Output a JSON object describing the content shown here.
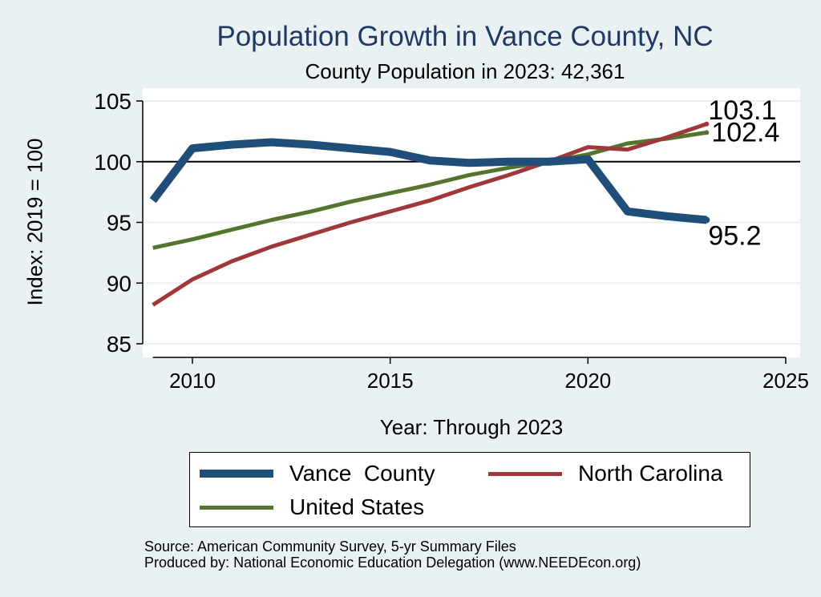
{
  "chart_data": {
    "type": "line",
    "title": "Population Growth in Vance County, NC",
    "subtitle": "County Population in 2023: 42,361",
    "xlabel": "Year: Through 2023",
    "ylabel": "Index: 2019 = 100",
    "xlim": [
      2009,
      2025
    ],
    "ylim": [
      84,
      106
    ],
    "xticks": [
      2010,
      2015,
      2020,
      2025
    ],
    "yticks": [
      85,
      90,
      95,
      100,
      105
    ],
    "reference_line": 100,
    "series": [
      {
        "name": "Vance  County",
        "color": "#1f4e79",
        "x": [
          2009,
          2010,
          2011,
          2012,
          2013,
          2014,
          2015,
          2016,
          2017,
          2018,
          2019,
          2020,
          2021,
          2022,
          2023
        ],
        "values": [
          96.8,
          101.1,
          101.4,
          101.6,
          101.4,
          101.1,
          100.8,
          100.1,
          99.9,
          100.0,
          100.0,
          100.2,
          95.9,
          95.5,
          95.2
        ],
        "end_label": "95.2"
      },
      {
        "name": "North Carolina",
        "color": "#a0383b",
        "x": [
          2009,
          2010,
          2011,
          2012,
          2013,
          2014,
          2015,
          2016,
          2017,
          2018,
          2019,
          2020,
          2021,
          2022,
          2023
        ],
        "values": [
          88.2,
          90.3,
          91.8,
          93.0,
          94.0,
          95.0,
          95.9,
          96.8,
          97.9,
          98.9,
          100.0,
          101.2,
          101.0,
          102.0,
          103.1
        ],
        "end_label": "103.1"
      },
      {
        "name": "United States",
        "color": "#55752f",
        "x": [
          2009,
          2010,
          2011,
          2012,
          2013,
          2014,
          2015,
          2016,
          2017,
          2018,
          2019,
          2020,
          2021,
          2022,
          2023
        ],
        "values": [
          92.9,
          93.6,
          94.4,
          95.2,
          95.9,
          96.7,
          97.4,
          98.1,
          98.9,
          99.5,
          100.0,
          100.6,
          101.5,
          101.9,
          102.4
        ],
        "end_label": "102.4"
      }
    ]
  },
  "legend": {
    "vance": "Vance  County",
    "nc": "North Carolina",
    "us": "United States"
  },
  "footer": {
    "source": "Source: American Community Survey, 5-yr Summary Files",
    "produced": "Produced by: National Economic Education Delegation (www.NEEDEcon.org)"
  }
}
